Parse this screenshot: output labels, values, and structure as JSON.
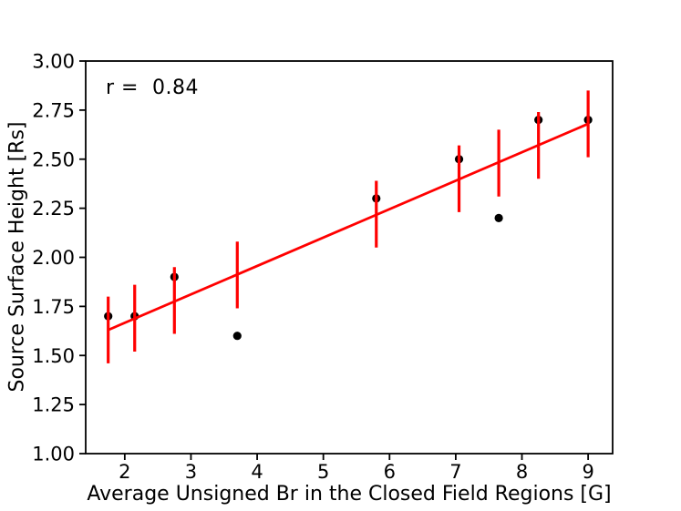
{
  "chart_data": {
    "type": "scatter",
    "title": "",
    "xlabel": "Average Unsigned Br in the Closed Field Regions [G]",
    "ylabel": "Source Surface Height [Rs]",
    "annotation": "r =  0.84",
    "r_value": 0.84,
    "xlim": [
      1.41,
      9.37
    ],
    "ylim": [
      1.0,
      3.0
    ],
    "grid": false,
    "legend": "none",
    "x_ticks": [
      {
        "value": 2,
        "label": "2"
      },
      {
        "value": 3,
        "label": "3"
      },
      {
        "value": 4,
        "label": "4"
      },
      {
        "value": 5,
        "label": "5"
      },
      {
        "value": 6,
        "label": "6"
      },
      {
        "value": 7,
        "label": "7"
      },
      {
        "value": 8,
        "label": "8"
      },
      {
        "value": 9,
        "label": "9"
      }
    ],
    "y_ticks": [
      {
        "value": 3.0,
        "label": "3.00"
      },
      {
        "value": 2.75,
        "label": "2.75"
      },
      {
        "value": 2.5,
        "label": "2.50"
      },
      {
        "value": 2.25,
        "label": "2.25"
      },
      {
        "value": 2.0,
        "label": "2.00"
      },
      {
        "value": 1.75,
        "label": "1.75"
      },
      {
        "value": 1.5,
        "label": "1.50"
      },
      {
        "value": 1.25,
        "label": "1.25"
      },
      {
        "value": 1.0,
        "label": "1.00"
      }
    ],
    "points": [
      {
        "x": 1.75,
        "y": 1.7
      },
      {
        "x": 2.15,
        "y": 1.7
      },
      {
        "x": 2.75,
        "y": 1.9
      },
      {
        "x": 3.7,
        "y": 1.6
      },
      {
        "x": 5.8,
        "y": 2.3
      },
      {
        "x": 7.05,
        "y": 2.5
      },
      {
        "x": 7.65,
        "y": 2.2
      },
      {
        "x": 8.25,
        "y": 2.7
      },
      {
        "x": 9.0,
        "y": 2.7
      }
    ],
    "error_bars": [
      {
        "x": 1.75,
        "y_center": 1.63,
        "y_err": 0.17
      },
      {
        "x": 2.15,
        "y_center": 1.69,
        "y_err": 0.17
      },
      {
        "x": 2.75,
        "y_center": 1.78,
        "y_err": 0.17
      },
      {
        "x": 3.7,
        "y_center": 1.91,
        "y_err": 0.17
      },
      {
        "x": 5.8,
        "y_center": 2.22,
        "y_err": 0.17
      },
      {
        "x": 7.05,
        "y_center": 2.4,
        "y_err": 0.17
      },
      {
        "x": 7.65,
        "y_center": 2.48,
        "y_err": 0.17
      },
      {
        "x": 8.25,
        "y_center": 2.57,
        "y_err": 0.17
      },
      {
        "x": 9.0,
        "y_center": 2.68,
        "y_err": 0.17
      }
    ],
    "fit_line": {
      "x_start": 1.75,
      "y_start": 1.63,
      "x_end": 9.0,
      "y_end": 2.68,
      "slope": 0.145,
      "intercept": 1.377
    },
    "colors": {
      "points": "#000000",
      "error_bars": "#ff0000",
      "fit_line": "#ff0000",
      "axes": "#000000",
      "background": "#ffffff"
    }
  }
}
